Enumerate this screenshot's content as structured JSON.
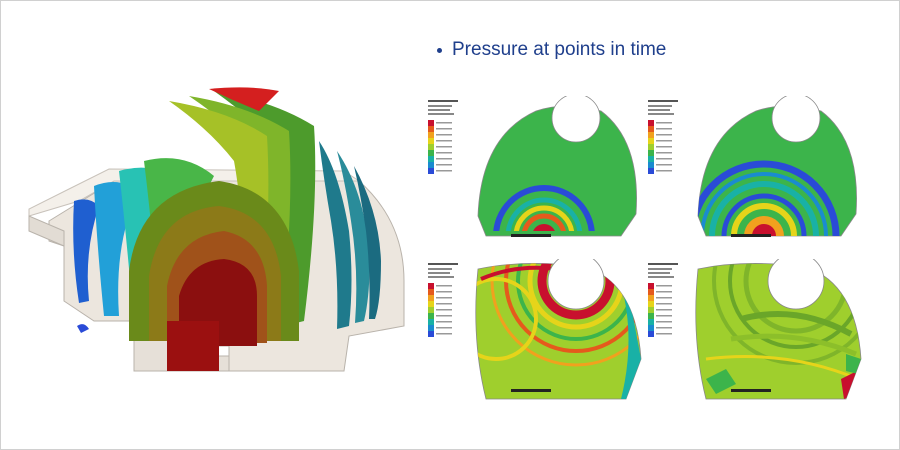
{
  "slide": {
    "title": "Pressure at points in time",
    "bullet_icon": "bullet-point-icon"
  },
  "colors": {
    "title_text": "#1f3f8c",
    "background": "#ffffff",
    "frame_border": "#d0d0d0",
    "housing": "#ede7df"
  },
  "palette": [
    "#c8102e",
    "#e55a1c",
    "#f1a11e",
    "#e6d41a",
    "#9fcf2d",
    "#3cb44b",
    "#19b1a6",
    "#1a8ccf",
    "#2a4bd7"
  ],
  "colorbar_labels": [
    "",
    "",
    "",
    "",
    "",
    "",
    "",
    "",
    ""
  ],
  "panels": [
    {
      "id": "t1",
      "pattern": "rings-small"
    },
    {
      "id": "t2",
      "pattern": "rings-large"
    },
    {
      "id": "t3",
      "pattern": "reflected-1"
    },
    {
      "id": "t4",
      "pattern": "reflected-2"
    }
  ]
}
